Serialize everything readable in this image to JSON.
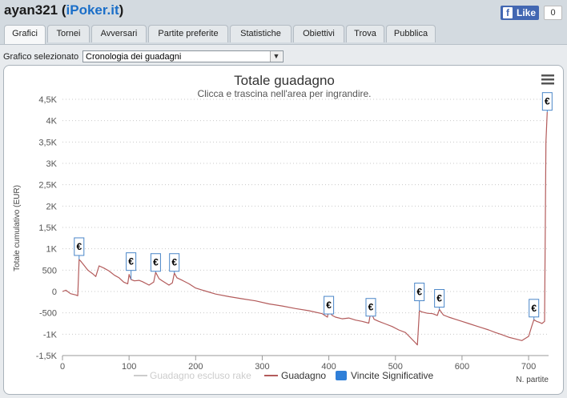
{
  "header": {
    "user": "ayan321",
    "open_paren": " (",
    "brand": "iPoker.it",
    "close_paren": ")",
    "fb_icon": "f",
    "like_label": "Like",
    "like_count": "0"
  },
  "tabs": [
    {
      "label": "Grafici",
      "active": true
    },
    {
      "label": "Tornei"
    },
    {
      "label": "Avversari"
    },
    {
      "label": "Partite preferite"
    },
    {
      "label": "Statistiche"
    },
    {
      "label": "Obiettivi"
    },
    {
      "label": "Trova"
    },
    {
      "label": "Pubblica"
    }
  ],
  "selector": {
    "label": "Grafico selezionato",
    "value": "Cronologia dei guadagni",
    "arrow_icon": "chevron-down-icon"
  },
  "colors": {
    "gain_line": "#b35b5b",
    "marker": "#4a86c8",
    "title": "#333333",
    "grid": "#c9c9c9"
  },
  "menu_icon": "hamburger-menu-icon",
  "chart_data": {
    "type": "line",
    "title": "Totale guadagno",
    "subtitle": "Clicca e trascina nell'area per ingrandire.",
    "xlabel": "N. partite",
    "ylabel": "Totale cumulativo (EUR)",
    "xlim": [
      0,
      730
    ],
    "ylim": [
      -1500,
      4500
    ],
    "x_ticks": [
      0,
      100,
      200,
      300,
      400,
      500,
      600,
      700
    ],
    "x_tick_labels": [
      "0",
      "100",
      "200",
      "300",
      "400",
      "500",
      "600",
      "700"
    ],
    "y_ticks": [
      -1500,
      -1000,
      -500,
      0,
      500,
      1000,
      1500,
      2000,
      2500,
      3000,
      3500,
      4000,
      4500
    ],
    "y_tick_labels": [
      "-1,5K",
      "-1K",
      "-500",
      "0",
      "500",
      "1K",
      "1,5K",
      "2K",
      "2,5K",
      "3K",
      "3,5K",
      "4K",
      "4,5K"
    ],
    "grid": "horizontal dotted",
    "legend_position": "bottom",
    "series": [
      {
        "name": "Guadagno escluso rake",
        "visible": false,
        "color": "#cccccc",
        "x": [],
        "y": []
      },
      {
        "name": "Guadagno",
        "color": "#b35b5b",
        "x": [
          0,
          5,
          12,
          20,
          23,
          25,
          28,
          32,
          38,
          45,
          50,
          55,
          62,
          70,
          78,
          85,
          92,
          98,
          100,
          103,
          108,
          115,
          120,
          130,
          137,
          140,
          145,
          150,
          160,
          165,
          168,
          172,
          180,
          190,
          200,
          215,
          230,
          250,
          270,
          290,
          310,
          330,
          350,
          370,
          390,
          398,
          400,
          405,
          410,
          420,
          430,
          440,
          450,
          460,
          463,
          468,
          475,
          485,
          495,
          505,
          515,
          530,
          533,
          536,
          540,
          548,
          556,
          563,
          566,
          572,
          580,
          590,
          600,
          610,
          620,
          630,
          640,
          650,
          660,
          670,
          680,
          690,
          700,
          705,
          708,
          712,
          716,
          720,
          724,
          726,
          728
        ],
        "y": [
          0,
          30,
          -50,
          -80,
          -100,
          750,
          700,
          620,
          500,
          420,
          350,
          600,
          550,
          480,
          380,
          320,
          220,
          180,
          400,
          280,
          250,
          260,
          230,
          150,
          220,
          450,
          300,
          250,
          150,
          200,
          430,
          320,
          260,
          180,
          80,
          10,
          -60,
          -120,
          -170,
          -220,
          -290,
          -340,
          -400,
          -450,
          -520,
          -600,
          -420,
          -560,
          -600,
          -640,
          -620,
          -670,
          -700,
          -740,
          -470,
          -650,
          -700,
          -760,
          -820,
          -900,
          -960,
          -1200,
          -1250,
          -450,
          -480,
          -510,
          -520,
          -560,
          -420,
          -550,
          -600,
          -650,
          -700,
          -750,
          -800,
          -850,
          -900,
          -960,
          -1010,
          -1070,
          -1110,
          -1150,
          -1050,
          -800,
          -660,
          -700,
          -720,
          -750,
          -700,
          3500,
          4200
        ]
      },
      {
        "name": "Vincite Significative",
        "type": "flags",
        "color": "#4a86c8",
        "symbol": "€",
        "x": [
          25,
          103,
          140,
          168,
          400,
          463,
          536,
          566,
          708,
          728
        ],
        "y": [
          1050,
          700,
          680,
          680,
          -320,
          -370,
          -10,
          -160,
          -390,
          4450
        ]
      }
    ]
  }
}
